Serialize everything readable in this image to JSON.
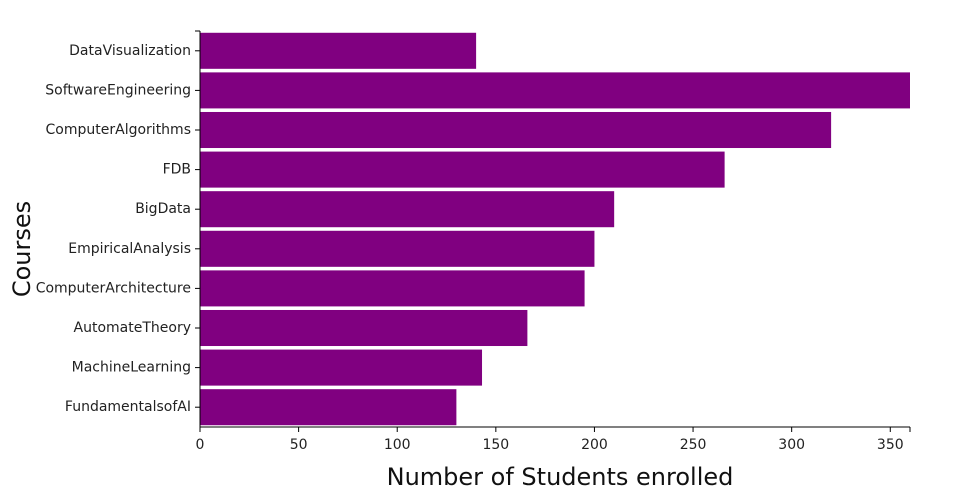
{
  "chart_data": {
    "type": "bar",
    "orientation": "horizontal",
    "categories": [
      "DataVisualization",
      "SoftwareEngineering",
      "ComputerAlgorithms",
      "FDB",
      "BigData",
      "EmpiricalAnalysis",
      "ComputerArchitecture",
      "AutomateTheory",
      "MachineLearning",
      "FundamentalsofAI"
    ],
    "values": [
      140,
      360,
      320,
      266,
      210,
      200,
      195,
      166,
      143,
      130
    ],
    "color": "#800080",
    "xlabel": "Number of Students enrolled",
    "ylabel": "Courses",
    "xlim": [
      0,
      360
    ],
    "xticks": [
      0,
      50,
      100,
      150,
      200,
      250,
      300,
      350
    ],
    "grid": false
  }
}
